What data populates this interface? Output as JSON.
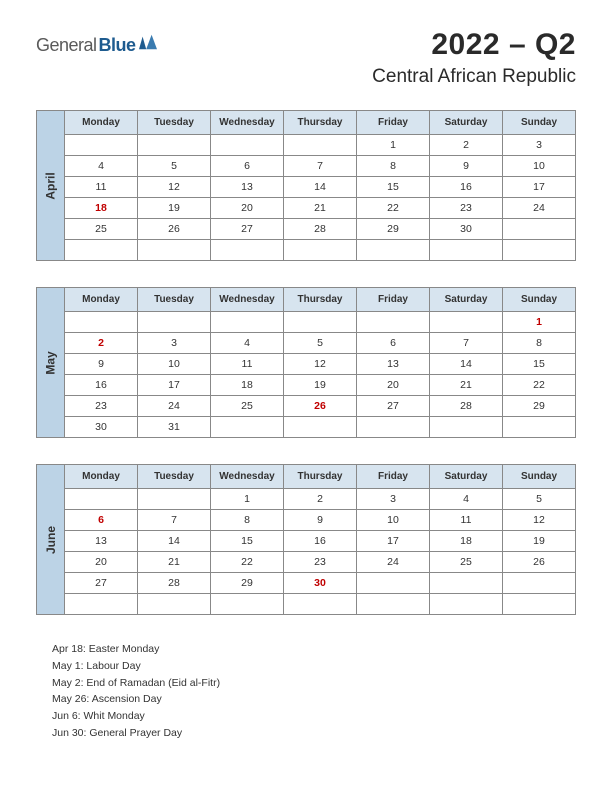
{
  "logo": {
    "text1": "General",
    "text2": "Blue"
  },
  "title": {
    "main": "2022 – Q2",
    "sub": "Central African Republic"
  },
  "colors": {
    "month_label_bg": "#bcd3e6",
    "header_row_bg": "#d7e4ef",
    "holiday_text": "#c00000",
    "border": "#888888"
  },
  "weekdays": [
    "Monday",
    "Tuesday",
    "Wednesday",
    "Thursday",
    "Friday",
    "Saturday",
    "Sunday"
  ],
  "months": [
    {
      "name": "April",
      "rows": [
        [
          "",
          "",
          "",
          "",
          "1",
          "2",
          "3"
        ],
        [
          "4",
          "5",
          "6",
          "7",
          "8",
          "9",
          "10"
        ],
        [
          "11",
          "12",
          "13",
          "14",
          "15",
          "16",
          "17"
        ],
        [
          "18",
          "19",
          "20",
          "21",
          "22",
          "23",
          "24"
        ],
        [
          "25",
          "26",
          "27",
          "28",
          "29",
          "30",
          ""
        ],
        [
          "",
          "",
          "",
          "",
          "",
          "",
          ""
        ]
      ],
      "holidays": [
        [
          3,
          0
        ]
      ]
    },
    {
      "name": "May",
      "rows": [
        [
          "",
          "",
          "",
          "",
          "",
          "",
          "1"
        ],
        [
          "2",
          "3",
          "4",
          "5",
          "6",
          "7",
          "8"
        ],
        [
          "9",
          "10",
          "11",
          "12",
          "13",
          "14",
          "15"
        ],
        [
          "16",
          "17",
          "18",
          "19",
          "20",
          "21",
          "22"
        ],
        [
          "23",
          "24",
          "25",
          "26",
          "27",
          "28",
          "29"
        ],
        [
          "30",
          "31",
          "",
          "",
          "",
          "",
          ""
        ]
      ],
      "holidays": [
        [
          0,
          6
        ],
        [
          1,
          0
        ],
        [
          4,
          3
        ]
      ]
    },
    {
      "name": "June",
      "rows": [
        [
          "",
          "",
          "1",
          "2",
          "3",
          "4",
          "5"
        ],
        [
          "6",
          "7",
          "8",
          "9",
          "10",
          "11",
          "12"
        ],
        [
          "13",
          "14",
          "15",
          "16",
          "17",
          "18",
          "19"
        ],
        [
          "20",
          "21",
          "22",
          "23",
          "24",
          "25",
          "26"
        ],
        [
          "27",
          "28",
          "29",
          "30",
          "",
          "",
          ""
        ],
        [
          "",
          "",
          "",
          "",
          "",
          "",
          ""
        ]
      ],
      "holidays": [
        [
          1,
          0
        ],
        [
          4,
          3
        ]
      ]
    }
  ],
  "holiday_list": [
    "Apr 18: Easter Monday",
    "May 1: Labour Day",
    "May 2: End of Ramadan (Eid al-Fitr)",
    "May 26: Ascension Day",
    "Jun 6: Whit Monday",
    "Jun 30: General Prayer Day"
  ]
}
